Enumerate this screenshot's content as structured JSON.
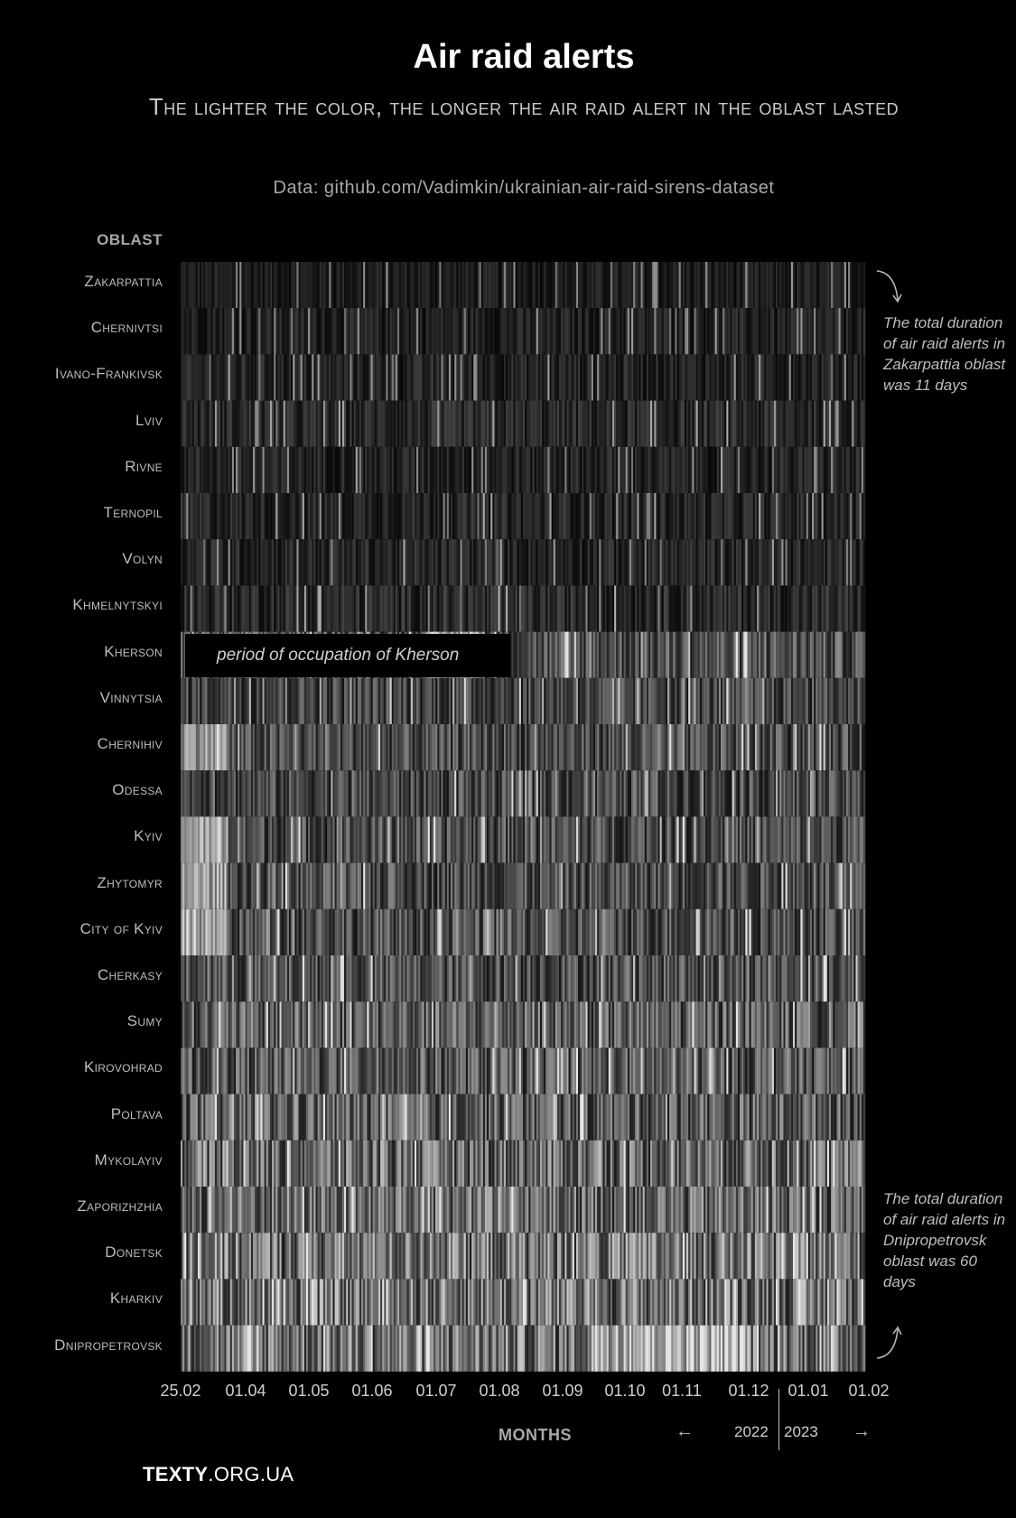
{
  "header": {
    "title": "Air raid alerts",
    "subtitle": "The lighter the color, the longer the air raid alert in the oblast lasted",
    "source": "Data: github.com/Vadimkin/ukrainian-air-raid-sirens-dataset"
  },
  "chart_data": {
    "type": "heatmap",
    "ylabel": "OBLAST",
    "xlabel": "MONTHS",
    "rows": [
      "Zakarpattia",
      "Chernivtsi",
      "Ivano-Frankivsk",
      "Lviv",
      "Rivne",
      "Ternopil",
      "Volyn",
      "Khmelnytskyi",
      "Kherson",
      "Vinnytsia",
      "Chernihiv",
      "Odessa",
      "Kyiv",
      "Zhytomyr",
      "City of Kyiv",
      "Cherkasy",
      "Sumy",
      "Kirovohrad",
      "Poltava",
      "Mykolayiv",
      "Zaporizhzhia",
      "Donetsk",
      "Kharkiv",
      "Dnipropetrovsk"
    ],
    "x_ticks": [
      "25.02",
      "01.04",
      "01.05",
      "01.06",
      "01.07",
      "01.08",
      "01.09",
      "01.10",
      "01.11",
      "01.12",
      "01.01",
      "01.02"
    ],
    "x_range": [
      "2022-02-25",
      "2023-02-20"
    ],
    "years": [
      "2022",
      "2023"
    ],
    "color_scale": {
      "min_color": "#000000",
      "max_color": "#ffffff"
    },
    "intensity_by_row": [
      0.12,
      0.14,
      0.15,
      0.17,
      0.15,
      0.16,
      0.16,
      0.18,
      0.35,
      0.3,
      0.32,
      0.3,
      0.33,
      0.33,
      0.34,
      0.34,
      0.4,
      0.38,
      0.4,
      0.45,
      0.45,
      0.5,
      0.5,
      0.5
    ],
    "annotations": [
      {
        "text": "The total duration of air raid alerts in Zakarpattia oblast was 11 days",
        "row": "Zakarpattia"
      },
      {
        "text": "The total duration of air raid alerts in Dnipropetrovsk oblast was 60 days",
        "row": "Dnipropetrovsk"
      },
      {
        "text": "period of occupation of Kherson",
        "row": "Kherson",
        "x_range": [
          "25.02",
          "01.09"
        ]
      }
    ]
  },
  "legend": {
    "arrow_left": "←",
    "arrow_right": "→"
  },
  "footer": {
    "logo_bold": "TEXTY",
    "logo_rest": ".ORG.UA"
  }
}
